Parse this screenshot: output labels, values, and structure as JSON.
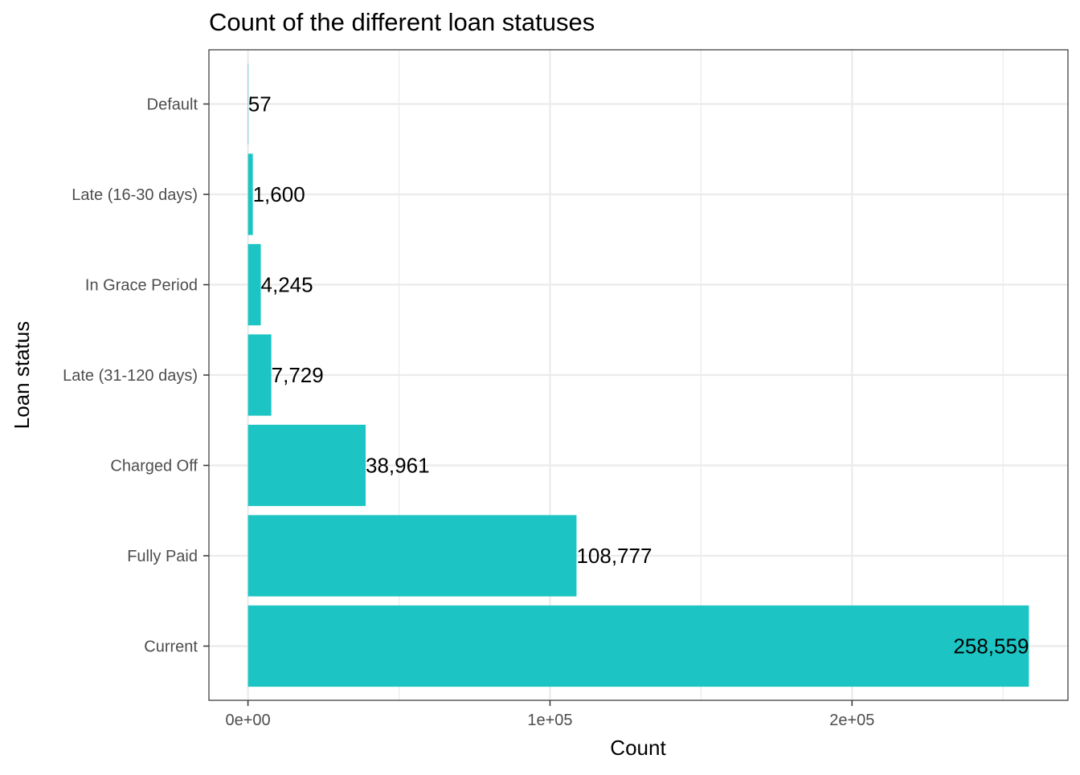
{
  "chart_data": {
    "type": "bar",
    "orientation": "horizontal",
    "title": "Count of the different loan statuses",
    "xlabel": "Count",
    "ylabel": "Loan status",
    "categories": [
      "Current",
      "Fully Paid",
      "Charged Off",
      "Late (31-120 days)",
      "In Grace Period",
      "Late (16-30 days)",
      "Default"
    ],
    "values": [
      258559,
      108777,
      38961,
      7729,
      4245,
      1600,
      57
    ],
    "data_labels": [
      "258,559",
      "108,777",
      "38,961",
      "7,729",
      "4,245",
      "1,600",
      "57"
    ],
    "x_ticks": [
      0,
      100000,
      200000
    ],
    "x_tick_labels": [
      "0e+00",
      "1e+05",
      "2e+05"
    ],
    "xlim": [
      -12928,
      271487
    ],
    "grid": true,
    "bar_color": "#1CC5C4",
    "grid_color": "#EBEBEB",
    "panel_border_color": "#333333"
  }
}
